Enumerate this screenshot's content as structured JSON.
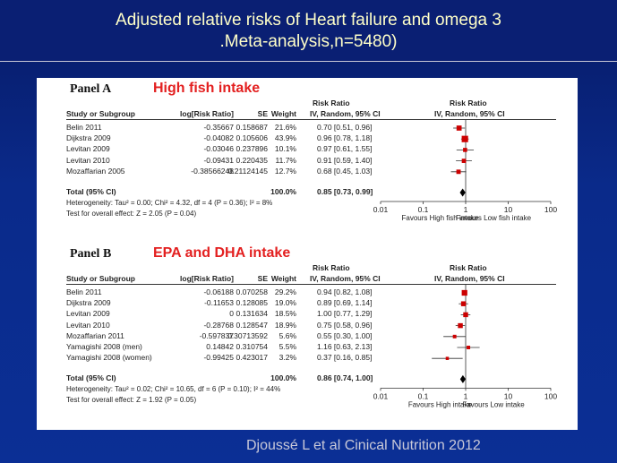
{
  "slide": {
    "title_line1": "Adjusted relative risks of Heart failure and omega 3",
    "title_line2": ".Meta-analysis,n=5480)",
    "citation": "Djoussé L et al Cinical Nutrition 2012"
  },
  "colors": {
    "background": "#0a2a8a",
    "title_text": "#ffffc8",
    "subtitle_red": "#e32020",
    "marker": "#cc0000"
  },
  "headers": {
    "rr_top": "Risk Ratio",
    "study": "Study or Subgroup",
    "log_rr": "log[Risk Ratio]",
    "se": "SE",
    "weight": "Weight",
    "rr_method": "IV, Random, 95% CI"
  },
  "panels": [
    {
      "label": "Panel A",
      "subtitle": "High fish intake",
      "studies": [
        {
          "name": "Belin 2011",
          "log_rr": "-0.35667",
          "se": "0.158687",
          "weight": "21.6%",
          "ci": "0.70 [0.51, 0.96]"
        },
        {
          "name": "Dijkstra 2009",
          "log_rr": "-0.04082",
          "se": "0.105606",
          "weight": "43.9%",
          "ci": "0.96 [0.78, 1.18]"
        },
        {
          "name": "Levitan 2009",
          "log_rr": "-0.03046",
          "se": "0.237896",
          "weight": "10.1%",
          "ci": "0.97 [0.61, 1.55]"
        },
        {
          "name": "Levitan 2010",
          "log_rr": "-0.09431",
          "se": "0.220435",
          "weight": "11.7%",
          "ci": "0.91 [0.59, 1.40]"
        },
        {
          "name": "Mozaffarian 2005",
          "log_rr": "-0.38566248",
          "se": "0.21124145",
          "weight": "12.7%",
          "ci": "0.68 [0.45, 1.03]"
        }
      ],
      "total": {
        "name": "Total (95% CI)",
        "weight": "100.0%",
        "ci": "0.85 [0.73, 0.99]"
      },
      "heterogeneity": "Heterogeneity: Tau² = 0.00; Chi² = 4.32, df = 4 (P = 0.36); I² = 8%",
      "overall": "Test for overall effect: Z = 2.05 (P = 0.04)",
      "favours_left": "Favours High fish intake",
      "favours_right": "Favours Low fish intake"
    },
    {
      "label": "Panel B",
      "subtitle": "EPA and DHA intake",
      "studies": [
        {
          "name": "Belin 2011",
          "log_rr": "-0.06188",
          "se": "0.070258",
          "weight": "29.2%",
          "ci": "0.94 [0.82, 1.08]"
        },
        {
          "name": "Dijkstra 2009",
          "log_rr": "-0.11653",
          "se": "0.128085",
          "weight": "19.0%",
          "ci": "0.89 [0.69, 1.14]"
        },
        {
          "name": "Levitan 2009",
          "log_rr": "0",
          "se": "0.131634",
          "weight": "18.5%",
          "ci": "1.00 [0.77, 1.29]"
        },
        {
          "name": "Levitan 2010",
          "log_rr": "-0.28768",
          "se": "0.128547",
          "weight": "18.9%",
          "ci": "0.75 [0.58, 0.96]"
        },
        {
          "name": "Mozaffarian 2011",
          "log_rr": "-0.597837",
          "se": "0.30713592",
          "weight": "5.6%",
          "ci": "0.55 [0.30, 1.00]"
        },
        {
          "name": "Yamagishi 2008 (men)",
          "log_rr": "0.14842",
          "se": "0.310754",
          "weight": "5.5%",
          "ci": "1.16 [0.63, 2.13]"
        },
        {
          "name": "Yamagishi 2008 (women)",
          "log_rr": "-0.99425",
          "se": "0.423017",
          "weight": "3.2%",
          "ci": "0.37 [0.16, 0.85]"
        }
      ],
      "total": {
        "name": "Total (95% CI)",
        "weight": "100.0%",
        "ci": "0.86 [0.74, 1.00]"
      },
      "heterogeneity": "Heterogeneity: Tau² = 0.02; Chi² = 10.65, df = 6 (P = 0.10); I² = 44%",
      "overall": "Test for overall effect: Z = 1.92 (P = 0.05)",
      "favours_left": "Favours High intake",
      "favours_right": "Favours Low intake"
    }
  ],
  "chart_data": [
    {
      "type": "forest",
      "title": "Panel A - High fish intake",
      "xscale": "log",
      "xlim": [
        0.01,
        100
      ],
      "ticks": [
        0.01,
        0.1,
        1,
        10,
        100
      ],
      "tick_labels": [
        "0.01",
        "0.1",
        "1",
        "10",
        "100"
      ],
      "studies": [
        {
          "name": "Belin 2011",
          "rr": 0.7,
          "lo": 0.51,
          "hi": 0.96,
          "weight": 21.6
        },
        {
          "name": "Dijkstra 2009",
          "rr": 0.96,
          "lo": 0.78,
          "hi": 1.18,
          "weight": 43.9
        },
        {
          "name": "Levitan 2009",
          "rr": 0.97,
          "lo": 0.61,
          "hi": 1.55,
          "weight": 10.1
        },
        {
          "name": "Levitan 2010",
          "rr": 0.91,
          "lo": 0.59,
          "hi": 1.4,
          "weight": 11.7
        },
        {
          "name": "Mozaffarian 2005",
          "rr": 0.68,
          "lo": 0.45,
          "hi": 1.03,
          "weight": 12.7
        }
      ],
      "total": {
        "rr": 0.85,
        "lo": 0.73,
        "hi": 0.99
      }
    },
    {
      "type": "forest",
      "title": "Panel B - EPA and DHA intake",
      "xscale": "log",
      "xlim": [
        0.01,
        100
      ],
      "ticks": [
        0.01,
        0.1,
        1,
        10,
        100
      ],
      "tick_labels": [
        "0.01",
        "0.1",
        "1",
        "10",
        "100"
      ],
      "studies": [
        {
          "name": "Belin 2011",
          "rr": 0.94,
          "lo": 0.82,
          "hi": 1.08,
          "weight": 29.2
        },
        {
          "name": "Dijkstra 2009",
          "rr": 0.89,
          "lo": 0.69,
          "hi": 1.14,
          "weight": 19.0
        },
        {
          "name": "Levitan 2009",
          "rr": 1.0,
          "lo": 0.77,
          "hi": 1.29,
          "weight": 18.5
        },
        {
          "name": "Levitan 2010",
          "rr": 0.75,
          "lo": 0.58,
          "hi": 0.96,
          "weight": 18.9
        },
        {
          "name": "Mozaffarian 2011",
          "rr": 0.55,
          "lo": 0.3,
          "hi": 1.0,
          "weight": 5.6
        },
        {
          "name": "Yamagishi 2008 (men)",
          "rr": 1.16,
          "lo": 0.63,
          "hi": 2.13,
          "weight": 5.5
        },
        {
          "name": "Yamagishi 2008 (women)",
          "rr": 0.37,
          "lo": 0.16,
          "hi": 0.85,
          "weight": 3.2
        }
      ],
      "total": {
        "rr": 0.86,
        "lo": 0.74,
        "hi": 1.0
      }
    }
  ]
}
